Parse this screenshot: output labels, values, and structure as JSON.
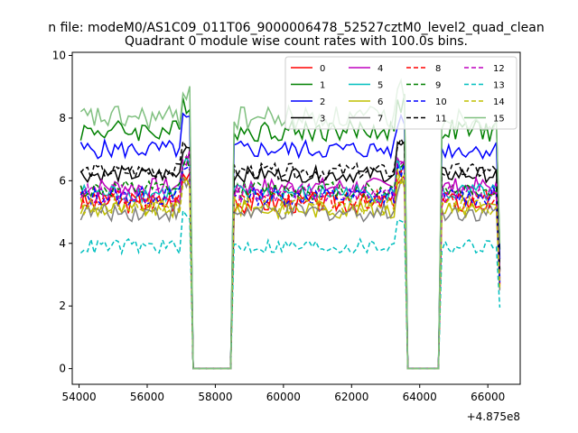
{
  "figure": {
    "suptitle": "n file: modeM0/AS1C09_011T06_9000006478_52527cztM0_level2_quad_clean",
    "title": "Quadrant 0 module wise count rates with 100.0s bins.",
    "x_offset_label": "+4.875e8"
  },
  "chart_data": {
    "type": "line",
    "title": "Quadrant 0 module wise count rates with 100.0s bins.",
    "xlabel": "",
    "ylabel": "",
    "x_offset": 487500000,
    "xlim": [
      53800,
      66950
    ],
    "ylim": [
      -0.5,
      10.1
    ],
    "xticks": [
      54000,
      56000,
      58000,
      60000,
      62000,
      64000,
      66000
    ],
    "yticks": [
      0,
      2,
      4,
      6,
      8,
      10
    ],
    "grid": false,
    "legend_placement": "top-right",
    "legend_ncol": 4,
    "x_start": 54050,
    "x_end": 66350,
    "bin": 100,
    "gaps": [
      [
        57300,
        58500
      ],
      [
        63600,
        64600
      ]
    ],
    "series": [
      {
        "name": "0",
        "color": "#ff0000",
        "dash": "solid",
        "level": 5.3,
        "noise": 0.35
      },
      {
        "name": "1",
        "color": "#008000",
        "dash": "solid",
        "level": 7.6,
        "noise": 0.35
      },
      {
        "name": "2",
        "color": "#0000ff",
        "dash": "solid",
        "level": 7.0,
        "noise": 0.3
      },
      {
        "name": "3",
        "color": "#000000",
        "dash": "solid",
        "level": 6.2,
        "noise": 0.25
      },
      {
        "name": "4",
        "color": "#bf00bf",
        "dash": "solid",
        "level": 5.8,
        "noise": 0.3
      },
      {
        "name": "5",
        "color": "#00bfbf",
        "dash": "solid",
        "level": 5.6,
        "noise": 0.3
      },
      {
        "name": "6",
        "color": "#bfbf00",
        "dash": "solid",
        "level": 5.1,
        "noise": 0.3
      },
      {
        "name": "7",
        "color": "#808080",
        "dash": "solid",
        "level": 5.0,
        "noise": 0.3
      },
      {
        "name": "8",
        "color": "#ff0000",
        "dash": "dashed",
        "level": 5.4,
        "noise": 0.3
      },
      {
        "name": "9",
        "color": "#008000",
        "dash": "dashed",
        "level": 5.7,
        "noise": 0.3
      },
      {
        "name": "10",
        "color": "#0000ff",
        "dash": "dashed",
        "level": 5.5,
        "noise": 0.3
      },
      {
        "name": "11",
        "color": "#000000",
        "dash": "dashed",
        "level": 6.3,
        "noise": 0.25
      },
      {
        "name": "12",
        "color": "#bf00bf",
        "dash": "dashed",
        "level": 5.6,
        "noise": 0.3
      },
      {
        "name": "13",
        "color": "#00bfbf",
        "dash": "dashed",
        "level": 3.9,
        "noise": 0.25
      },
      {
        "name": "14",
        "color": "#bfbf00",
        "dash": "dashed",
        "level": 5.2,
        "noise": 0.3
      },
      {
        "name": "15",
        "color": "#80c080",
        "dash": "solid",
        "level": 8.0,
        "noise": 0.4
      }
    ]
  }
}
